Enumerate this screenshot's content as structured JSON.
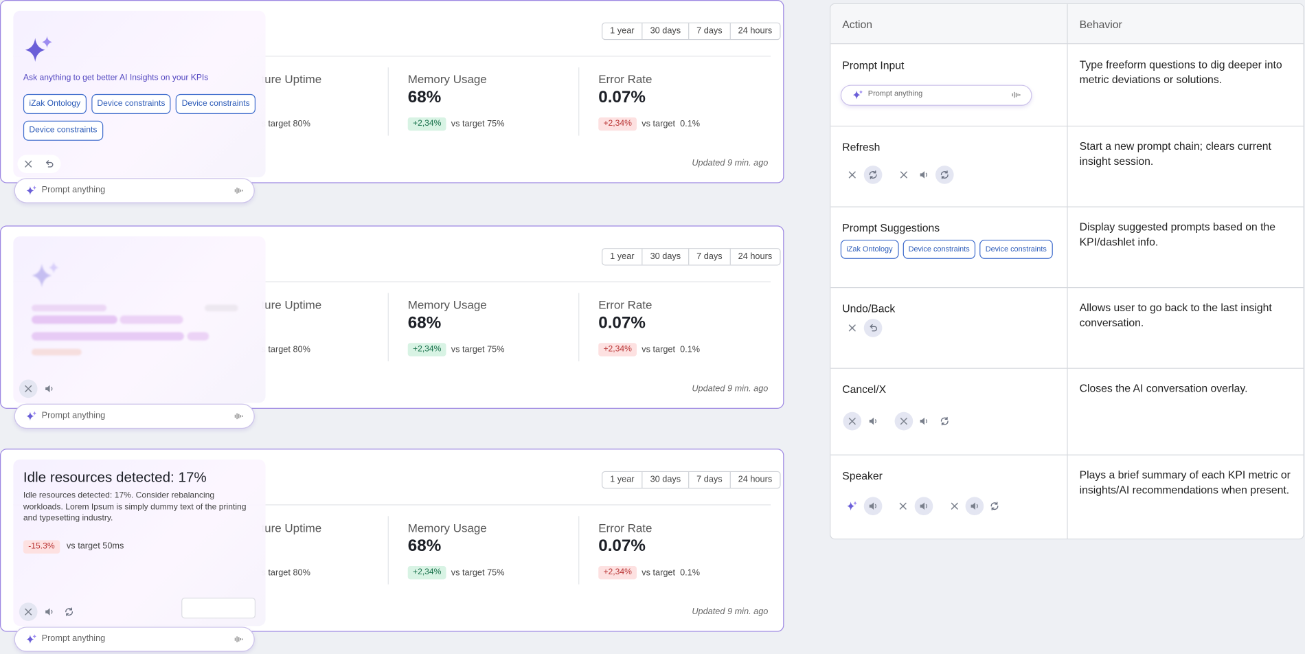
{
  "cards": [
    {
      "time_filters": [
        "1 year",
        "30 days",
        "7 days",
        "24 hours"
      ],
      "metrics": [
        {
          "label": "ture Uptime",
          "target": "s target 80%"
        },
        {
          "label": "Memory Usage",
          "value": "68%",
          "delta": "+2,34%",
          "target": "vs target 75%"
        },
        {
          "label": "Error Rate",
          "value": "0.07%",
          "delta": "+2,34%",
          "target": "vs target  0.1%"
        }
      ],
      "updated": "Updated 9 min. ago",
      "prompt": "Prompt anything",
      "overlay": {
        "caption": "Ask anything to get better AI Insights on your KPIs",
        "suggestions": [
          "iZak Ontology",
          "Device constraints",
          "Device constraints",
          "Device constraints"
        ]
      }
    },
    {
      "time_filters": [
        "1 year",
        "30 days",
        "7 days",
        "24 hours"
      ],
      "metrics": [
        {
          "label": "ture Uptime",
          "target": "s target 80%"
        },
        {
          "label": "Memory Usage",
          "value": "68%",
          "delta": "+2,34%",
          "target": "vs target 75%"
        },
        {
          "label": "Error Rate",
          "value": "0.07%",
          "delta": "+2,34%",
          "target": "vs target  0.1%"
        }
      ],
      "updated": "Updated 9 min. ago",
      "prompt": "Prompt anything"
    },
    {
      "time_filters": [
        "1 year",
        "30 days",
        "7 days",
        "24 hours"
      ],
      "metrics": [
        {
          "label": "ture Uptime",
          "target": "s target 80%"
        },
        {
          "label": "Memory Usage",
          "value": "68%",
          "delta": "+2,34%",
          "target": "vs target 75%"
        },
        {
          "label": "Error Rate",
          "value": "0.07%",
          "delta": "+2,34%",
          "target": "vs target  0.1%"
        }
      ],
      "updated": "Updated 9 min. ago",
      "prompt": "Prompt anything",
      "overlay": {
        "title": "Idle resources detected: 17%",
        "body": "Idle resources detected: 17%. Consider rebalancing workloads. Lorem Ipsum is simply dummy text of the printing and typesetting industry.",
        "delta": "-15.3%",
        "target": "vs target 50ms"
      }
    }
  ],
  "table": {
    "headers": [
      "Action",
      "Behavior"
    ],
    "rows": [
      {
        "action": "Prompt Input",
        "behavior": "Type freeform questions to dig deeper into metric deviations or solutions.",
        "prompt": "Prompt anything"
      },
      {
        "action": "Refresh",
        "behavior": "Start a new prompt chain; clears current insight session."
      },
      {
        "action": "Prompt Suggestions",
        "behavior": "Display suggested prompts based on the KPI/dashlet info.",
        "suggestions": [
          "iZak Ontology",
          "Device constraints",
          "Device constraints"
        ]
      },
      {
        "action": "Undo/Back",
        "behavior": "Allows user to go back to the last insight conversation."
      },
      {
        "action": "Cancel/X",
        "behavior": "Closes the AI conversation overlay."
      },
      {
        "action": "Speaker",
        "behavior": "Plays a brief summary of each KPI metric or insights/AI recommendations when present."
      }
    ]
  }
}
